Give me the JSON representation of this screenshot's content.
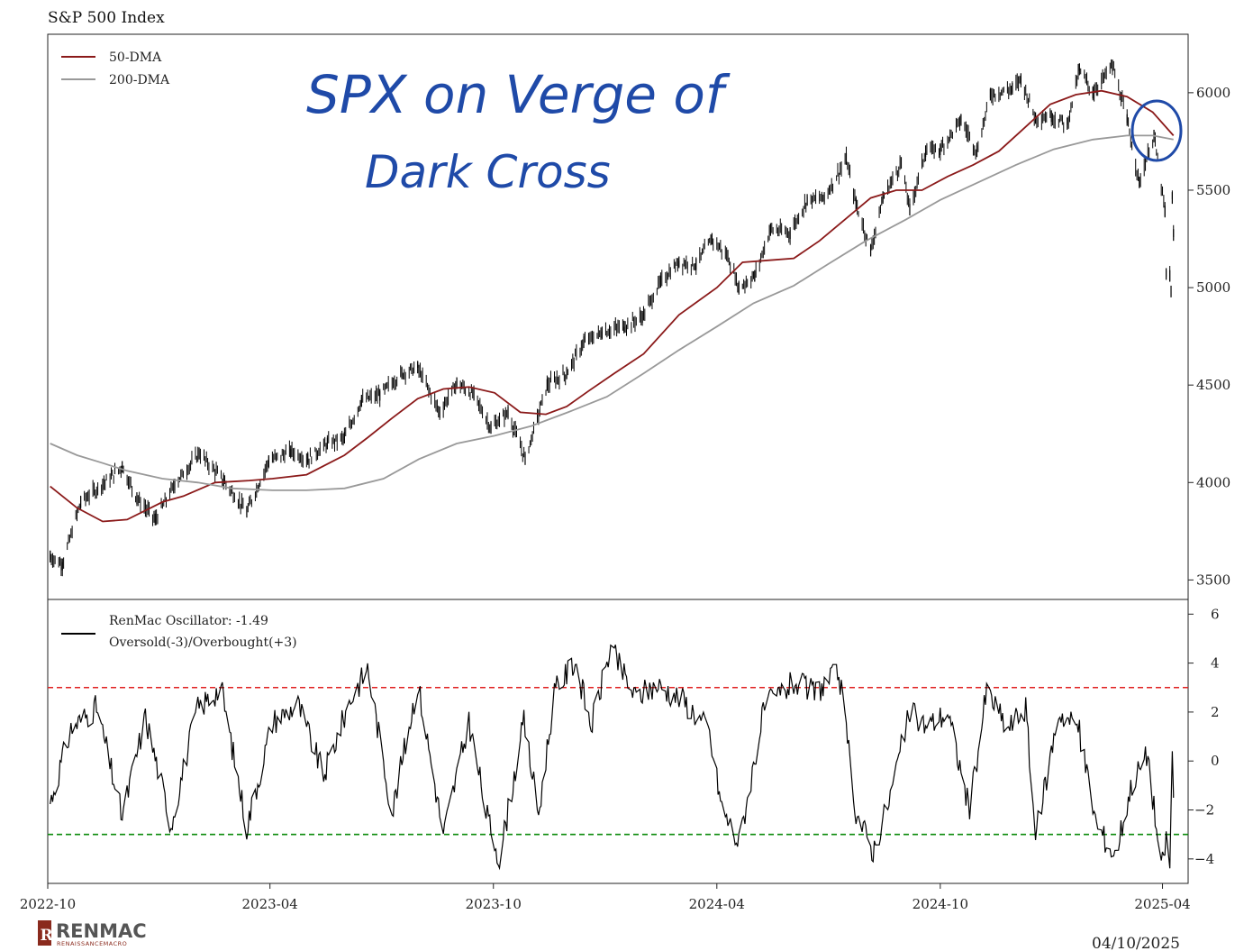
{
  "title": "S&P 500 Index",
  "date_stamp": "04/10/2025",
  "annotation": {
    "line1": "SPX on Verge of",
    "line2": "Dark Cross"
  },
  "logo": {
    "name": "RENMAC",
    "tagline": "RENAISSANCEMACRO"
  },
  "colors": {
    "dma50": "#8b1a1a",
    "dma200": "#999999",
    "oscillator": "#000000",
    "overbought": "#e02020",
    "oversold": "#0a8a0a",
    "annotation": "#1f4aa8"
  },
  "chart_data": [
    {
      "type": "line",
      "title": "S&P 500 Index",
      "x_tick_labels": [
        "2022-10",
        "2023-04",
        "2023-10",
        "2024-04",
        "2024-10",
        "2025-04"
      ],
      "y_tick_labels": [
        "3500",
        "4000",
        "4500",
        "5000",
        "5500",
        "6000"
      ],
      "ylim": [
        3400,
        6300
      ],
      "xlim": [
        "2022-10",
        "2025-04-22"
      ],
      "legend": [
        "50-DMA",
        "200-DMA"
      ],
      "legend_position": "top-left",
      "grid": false,
      "series": [
        {
          "name": "Price",
          "style": "ohlc-bars",
          "x": [
            "2022-10-03",
            "2022-10-13",
            "2022-10-28",
            "2022-11-15",
            "2022-12-01",
            "2022-12-13",
            "2022-12-28",
            "2023-01-13",
            "2023-02-02",
            "2023-02-22",
            "2023-03-13",
            "2023-03-31",
            "2023-04-18",
            "2023-05-02",
            "2023-05-18",
            "2023-06-01",
            "2023-06-15",
            "2023-06-30",
            "2023-07-18",
            "2023-07-31",
            "2023-08-18",
            "2023-09-01",
            "2023-09-15",
            "2023-09-29",
            "2023-10-13",
            "2023-10-27",
            "2023-11-14",
            "2023-11-30",
            "2023-12-14",
            "2023-12-29",
            "2024-01-16",
            "2024-01-31",
            "2024-02-15",
            "2024-03-01",
            "2024-03-15",
            "2024-03-28",
            "2024-04-10",
            "2024-04-19",
            "2024-05-02",
            "2024-05-15",
            "2024-05-31",
            "2024-06-14",
            "2024-06-28",
            "2024-07-16",
            "2024-07-24",
            "2024-08-05",
            "2024-08-15",
            "2024-08-30",
            "2024-09-06",
            "2024-09-19",
            "2024-10-01",
            "2024-10-18",
            "2024-10-31",
            "2024-11-11",
            "2024-11-29",
            "2024-12-06",
            "2024-12-18",
            "2024-12-31",
            "2025-01-13",
            "2025-01-23",
            "2025-02-03",
            "2025-02-19",
            "2025-03-03",
            "2025-03-13",
            "2025-03-25",
            "2025-04-03",
            "2025-04-04",
            "2025-04-07",
            "2025-04-08",
            "2025-04-09",
            "2025-04-10"
          ],
          "values": [
            3620,
            3580,
            3900,
            3990,
            4080,
            3920,
            3810,
            3990,
            4150,
            4010,
            3850,
            4110,
            4160,
            4120,
            4200,
            4230,
            4420,
            4450,
            4560,
            4590,
            4360,
            4510,
            4450,
            4280,
            4360,
            4120,
            4500,
            4560,
            4720,
            4770,
            4800,
            4850,
            5030,
            5130,
            5120,
            5250,
            5160,
            5000,
            5060,
            5300,
            5280,
            5450,
            5460,
            5660,
            5430,
            5190,
            5460,
            5640,
            5400,
            5700,
            5710,
            5860,
            5700,
            5990,
            6020,
            6070,
            5870,
            5880,
            5840,
            6120,
            6000,
            6140,
            5860,
            5540,
            5780,
            5390,
            5070,
            5060,
            4980,
            5460,
            5270
          ]
        },
        {
          "name": "50-DMA",
          "x": [
            "2022-10-03",
            "2022-10-25",
            "2022-11-15",
            "2022-12-05",
            "2023-01-03",
            "2023-01-20",
            "2023-02-15",
            "2023-03-15",
            "2023-04-03",
            "2023-05-01",
            "2023-06-01",
            "2023-06-20",
            "2023-07-10",
            "2023-07-31",
            "2023-08-21",
            "2023-09-11",
            "2023-10-02",
            "2023-10-23",
            "2023-11-13",
            "2023-11-30",
            "2023-12-18",
            "2024-01-08",
            "2024-02-01",
            "2024-03-01",
            "2024-04-01",
            "2024-04-22",
            "2024-05-13",
            "2024-06-03",
            "2024-06-24",
            "2024-07-15",
            "2024-08-05",
            "2024-08-26",
            "2024-09-16",
            "2024-10-07",
            "2024-10-28",
            "2024-11-18",
            "2024-12-09",
            "2024-12-30",
            "2025-01-20",
            "2025-02-10",
            "2025-03-03",
            "2025-03-24",
            "2025-04-10"
          ],
          "values": [
            3980,
            3870,
            3800,
            3810,
            3900,
            3930,
            4000,
            4010,
            4020,
            4040,
            4140,
            4230,
            4330,
            4430,
            4480,
            4490,
            4460,
            4360,
            4350,
            4390,
            4470,
            4560,
            4660,
            4860,
            5000,
            5130,
            5140,
            5150,
            5240,
            5350,
            5460,
            5500,
            5500,
            5570,
            5630,
            5700,
            5820,
            5940,
            5990,
            6010,
            5980,
            5900,
            5780
          ]
        },
        {
          "name": "200-DMA",
          "x": [
            "2022-10-03",
            "2022-10-25",
            "2022-11-15",
            "2022-12-05",
            "2023-01-03",
            "2023-02-01",
            "2023-03-01",
            "2023-04-03",
            "2023-05-01",
            "2023-06-01",
            "2023-07-03",
            "2023-08-01",
            "2023-09-01",
            "2023-10-02",
            "2023-11-01",
            "2023-12-01",
            "2024-01-02",
            "2024-02-01",
            "2024-03-01",
            "2024-04-01",
            "2024-05-01",
            "2024-06-03",
            "2024-07-01",
            "2024-08-01",
            "2024-09-03",
            "2024-10-01",
            "2024-11-01",
            "2024-12-02",
            "2025-01-02",
            "2025-02-03",
            "2025-03-03",
            "2025-03-24",
            "2025-04-10"
          ],
          "values": [
            4200,
            4140,
            4100,
            4060,
            4020,
            4000,
            3970,
            3960,
            3960,
            3970,
            4020,
            4120,
            4200,
            4240,
            4290,
            4360,
            4440,
            4560,
            4680,
            4800,
            4920,
            5010,
            5120,
            5240,
            5350,
            5450,
            5540,
            5630,
            5710,
            5760,
            5780,
            5780,
            5760
          ]
        }
      ]
    },
    {
      "type": "line",
      "title": "",
      "y_tick_labels": [
        "−4",
        "−2",
        "0",
        "2",
        "4",
        "6"
      ],
      "ylim": [
        -5,
        6.6
      ],
      "legend": [
        "RenMac Oscillator: -1.49",
        "Oversold(-3)/Overbought(+3)"
      ],
      "legend_position": "top-left",
      "reference_lines": [
        {
          "value": 3,
          "color": "#e02020",
          "style": "dashed"
        },
        {
          "value": -3,
          "color": "#0a8a0a",
          "style": "dashed"
        }
      ],
      "series": [
        {
          "name": "RenMac Oscillator",
          "x": [
            "2022-10-03",
            "2022-10-20",
            "2022-11-10",
            "2022-12-01",
            "2022-12-20",
            "2023-01-10",
            "2023-01-31",
            "2023-02-20",
            "2023-03-13",
            "2023-04-03",
            "2023-04-24",
            "2023-05-15",
            "2023-06-05",
            "2023-06-20",
            "2023-07-10",
            "2023-07-31",
            "2023-08-21",
            "2023-09-11",
            "2023-09-26",
            "2023-10-06",
            "2023-10-26",
            "2023-11-07",
            "2023-11-20",
            "2023-12-07",
            "2023-12-20",
            "2024-01-05",
            "2024-01-25",
            "2024-02-12",
            "2024-03-04",
            "2024-03-25",
            "2024-04-05",
            "2024-04-19",
            "2024-05-10",
            "2024-06-03",
            "2024-06-20",
            "2024-07-10",
            "2024-07-24",
            "2024-08-07",
            "2024-08-20",
            "2024-09-06",
            "2024-09-20",
            "2024-10-07",
            "2024-10-25",
            "2024-11-08",
            "2024-11-25",
            "2024-12-10",
            "2024-12-18",
            "2025-01-06",
            "2025-01-22",
            "2025-02-06",
            "2025-02-21",
            "2025-03-07",
            "2025-03-20",
            "2025-03-31",
            "2025-04-04",
            "2025-04-07",
            "2025-04-09",
            "2025-04-10"
          ],
          "values": [
            -1.7,
            1.3,
            2.2,
            -2.3,
            1.8,
            -2.6,
            2.1,
            3.0,
            -2.7,
            1.6,
            2.3,
            -0.6,
            2.4,
            3.8,
            -2.1,
            3.2,
            -3.0,
            1.6,
            -2.3,
            -4.0,
            1.6,
            -2.2,
            2.8,
            4.1,
            1.4,
            4.6,
            2.6,
            3.1,
            2.5,
            1.3,
            -1.9,
            -3.4,
            2.2,
            3.2,
            2.8,
            3.6,
            -2.1,
            -3.7,
            -1.6,
            2.0,
            1.4,
            2.0,
            -2.0,
            2.9,
            1.3,
            2.2,
            -3.1,
            2.0,
            1.4,
            -2.6,
            -3.9,
            -0.9,
            0.3,
            -4.5,
            -3.2,
            -4.3,
            0.4,
            -1.5
          ]
        }
      ]
    }
  ]
}
